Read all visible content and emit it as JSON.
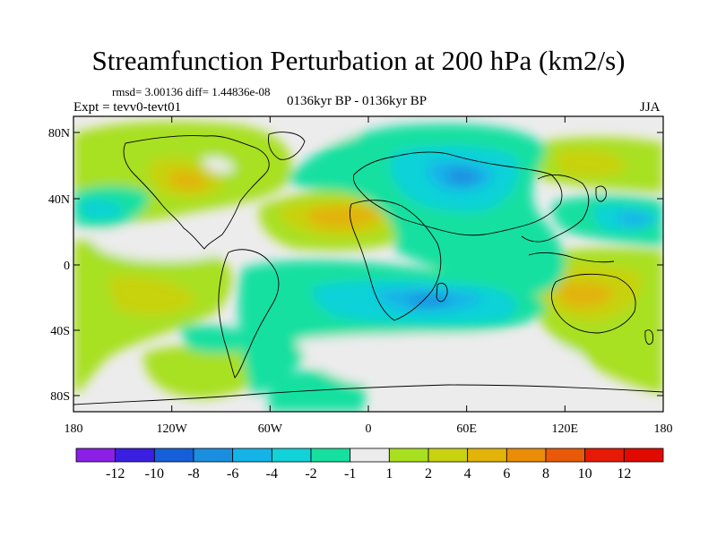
{
  "title": "Streamfunction Perturbation at 200 hPa (km2/s)",
  "stats": "rmsd= 3.00136 diff= 1.44836e-08",
  "experiment": "Expt = tevv0-tevt01",
  "period": "0136kyr BP - 0136kyr BP",
  "season": "JJA",
  "lat_ticks": [
    "80N",
    "40N",
    "0",
    "40S",
    "80S"
  ],
  "lon_ticks": [
    "180",
    "120W",
    "60W",
    "0",
    "60E",
    "120E",
    "180"
  ],
  "colorbar": {
    "labels": [
      "-12",
      "-10",
      "-8",
      "-6",
      "-4",
      "-2",
      "-1",
      "1",
      "2",
      "4",
      "6",
      "8",
      "10",
      "12"
    ],
    "colors": [
      "#8c1fe6",
      "#3b1fe0",
      "#1560d8",
      "#1a8fe0",
      "#14b4e8",
      "#10d2d8",
      "#16e0a0",
      "#ececec",
      "#a8e020",
      "#c8d210",
      "#e2b40a",
      "#ea8c08",
      "#e85a08",
      "#e61a06",
      "#e00a00"
    ]
  },
  "colors": {
    "neutral": "#ececec",
    "ocean_border": "#000000"
  }
}
